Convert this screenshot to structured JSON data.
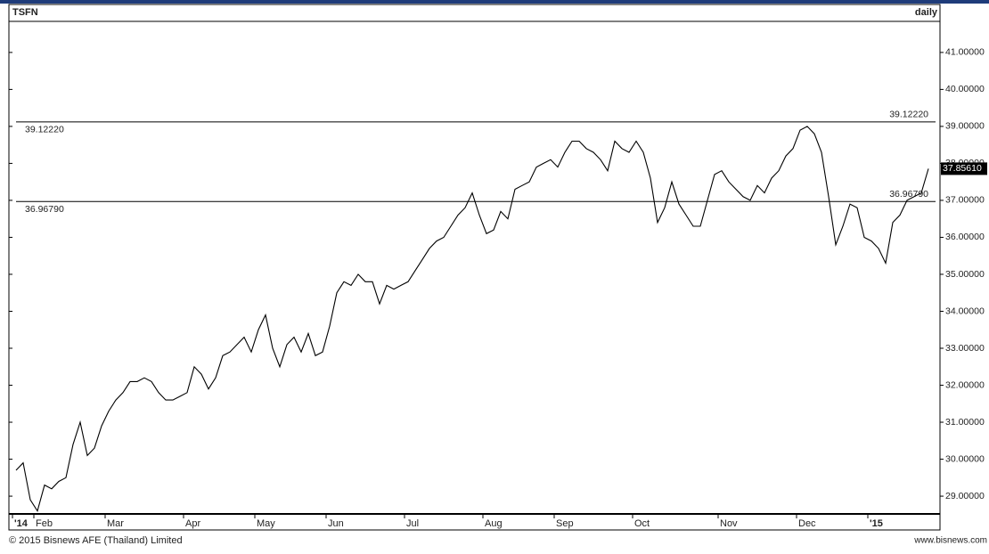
{
  "chart_data": {
    "type": "line",
    "title": "TSFN",
    "subtitle": "daily",
    "footer_left": "© 2015 Bisnews AFE (Thailand) Limited",
    "footer_right": "www.bisnews.com",
    "categories": [
      "'14",
      null,
      null,
      "Feb",
      null,
      null,
      null,
      null,
      null,
      null,
      null,
      null,
      null,
      "Mar",
      null,
      null,
      null,
      null,
      null,
      null,
      null,
      null,
      null,
      null,
      "Apr",
      null,
      null,
      null,
      null,
      null,
      null,
      null,
      null,
      null,
      "May",
      null,
      null,
      null,
      null,
      null,
      null,
      null,
      null,
      null,
      "Jun",
      null,
      null,
      null,
      null,
      null,
      null,
      null,
      null,
      null,
      null,
      "Jul",
      null,
      null,
      null,
      null,
      null,
      null,
      null,
      null,
      null,
      null,
      "Aug",
      null,
      null,
      null,
      null,
      null,
      null,
      null,
      null,
      null,
      "Sep",
      null,
      null,
      null,
      null,
      null,
      null,
      null,
      null,
      null,
      null,
      "Oct",
      null,
      null,
      null,
      null,
      null,
      null,
      null,
      null,
      null,
      null,
      null,
      "Nov",
      null,
      null,
      null,
      null,
      null,
      null,
      null,
      null,
      null,
      null,
      "Dec",
      null,
      null,
      null,
      null,
      null,
      null,
      null,
      null,
      null,
      "'15",
      null,
      null,
      null,
      null,
      null,
      null,
      null,
      null
    ],
    "series": [
      {
        "color": "#000000",
        "values": [
          29.7,
          29.9,
          28.9,
          28.6,
          29.3,
          29.2,
          29.4,
          29.5,
          30.4,
          31.0,
          30.1,
          30.3,
          30.9,
          31.3,
          31.6,
          31.8,
          32.1,
          32.1,
          32.2,
          32.1,
          31.8,
          31.6,
          31.6,
          31.7,
          31.8,
          32.5,
          32.3,
          31.9,
          32.2,
          32.8,
          32.9,
          33.1,
          33.3,
          32.9,
          33.5,
          33.9,
          33.0,
          32.5,
          33.1,
          33.3,
          32.9,
          33.4,
          32.8,
          32.9,
          33.6,
          34.5,
          34.8,
          34.7,
          35.0,
          34.8,
          34.8,
          34.2,
          34.7,
          34.6,
          34.7,
          34.8,
          35.1,
          35.4,
          35.7,
          35.9,
          36.0,
          36.3,
          36.6,
          36.8,
          37.2,
          36.6,
          36.1,
          36.2,
          36.7,
          36.5,
          37.3,
          37.4,
          37.5,
          37.9,
          38.0,
          38.1,
          37.9,
          38.3,
          38.6,
          38.6,
          38.4,
          38.3,
          38.1,
          37.8,
          38.6,
          38.4,
          38.3,
          38.6,
          38.3,
          37.6,
          36.4,
          36.8,
          37.5,
          36.9,
          36.6,
          36.3,
          36.3,
          37.0,
          37.7,
          37.8,
          37.5,
          37.3,
          37.1,
          37.0,
          37.4,
          37.2,
          37.6,
          37.8,
          38.2,
          38.4,
          38.9,
          39.0,
          38.8,
          38.3,
          37.1,
          35.8,
          36.3,
          36.9,
          36.8,
          36.0,
          35.9,
          35.7,
          35.3,
          36.4,
          36.6,
          37.0,
          37.1,
          37.2,
          37.8561
        ]
      }
    ],
    "last_label": "37.85610",
    "annotations": [
      {
        "value": 39.1222,
        "label": "39.12220"
      },
      {
        "value": 36.9679,
        "label": "36.96790"
      }
    ],
    "ylim": [
      28.52,
      41.84
    ],
    "yticks": [
      {
        "value": 29,
        "label": "29.00000"
      },
      {
        "value": 30,
        "label": "30.00000"
      },
      {
        "value": 31,
        "label": "31.00000"
      },
      {
        "value": 32,
        "label": "32.00000"
      },
      {
        "value": 33,
        "label": "33.00000"
      },
      {
        "value": 34,
        "label": "34.00000"
      },
      {
        "value": 35,
        "label": "35.00000"
      },
      {
        "value": 36,
        "label": "36.00000"
      },
      {
        "value": 37,
        "label": "37.00000"
      },
      {
        "value": 38,
        "label": "38.00000"
      },
      {
        "value": 39,
        "label": "39.00000"
      },
      {
        "value": 40,
        "label": "40.00000"
      },
      {
        "value": 41,
        "label": "41.00000"
      }
    ],
    "grid": false
  }
}
